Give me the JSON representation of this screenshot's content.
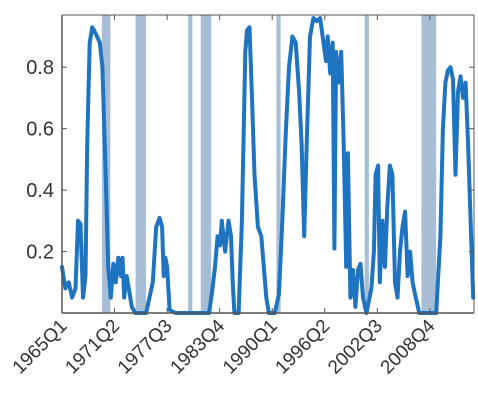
{
  "chart_data": {
    "type": "line",
    "title": "",
    "xlabel": "",
    "ylabel": "",
    "ylim": [
      0.0,
      0.97
    ],
    "xlim": [
      1965.0,
      2014.0
    ],
    "grid": false,
    "legend": "none",
    "colors": {
      "line": "#1f74c2",
      "shade": "#9fb6d2",
      "axis": "#555555",
      "text": "#333333"
    },
    "y_ticks": [
      {
        "value": 0.2,
        "label": "0.2"
      },
      {
        "value": 0.4,
        "label": "0.4"
      },
      {
        "value": 0.6,
        "label": "0.6"
      },
      {
        "value": 0.8,
        "label": "0.8"
      }
    ],
    "x_ticks": [
      {
        "value": 1965.0,
        "label": "1965Q1"
      },
      {
        "value": 1971.25,
        "label": "1971Q2"
      },
      {
        "value": 1977.5,
        "label": "1977Q3"
      },
      {
        "value": 1983.75,
        "label": "1983Q4"
      },
      {
        "value": 1990.0,
        "label": "1990Q1"
      },
      {
        "value": 1996.25,
        "label": "1996Q2"
      },
      {
        "value": 2002.5,
        "label": "2002Q3"
      },
      {
        "value": 2008.75,
        "label": "2008Q4"
      }
    ],
    "shaded_periods": [
      [
        1969.75,
        1970.75
      ],
      [
        1973.75,
        1975.0
      ],
      [
        1980.0,
        1980.5
      ],
      [
        1981.5,
        1982.75
      ],
      [
        1990.5,
        1991.0
      ],
      [
        2001.0,
        2001.5
      ],
      [
        2007.75,
        2009.5
      ]
    ],
    "series": [
      {
        "values": [
          [
            1965.0,
            0.15
          ],
          [
            1965.4,
            0.08
          ],
          [
            1965.8,
            0.1
          ],
          [
            1966.2,
            0.05
          ],
          [
            1966.6,
            0.08
          ],
          [
            1966.9,
            0.3
          ],
          [
            1967.2,
            0.29
          ],
          [
            1967.5,
            0.05
          ],
          [
            1967.8,
            0.12
          ],
          [
            1968.0,
            0.55
          ],
          [
            1968.3,
            0.88
          ],
          [
            1968.6,
            0.93
          ],
          [
            1969.0,
            0.91
          ],
          [
            1969.5,
            0.88
          ],
          [
            1969.8,
            0.8
          ],
          [
            1970.2,
            0.45
          ],
          [
            1970.5,
            0.15
          ],
          [
            1970.8,
            0.05
          ],
          [
            1971.1,
            0.16
          ],
          [
            1971.4,
            0.1
          ],
          [
            1971.7,
            0.18
          ],
          [
            1972.0,
            0.12
          ],
          [
            1972.2,
            0.18
          ],
          [
            1972.4,
            0.05
          ],
          [
            1972.7,
            0.12
          ],
          [
            1973.0,
            0.07
          ],
          [
            1973.3,
            0.02
          ],
          [
            1973.7,
            0.0
          ],
          [
            1975.0,
            0.0
          ],
          [
            1975.8,
            0.1
          ],
          [
            1976.2,
            0.28
          ],
          [
            1976.6,
            0.31
          ],
          [
            1976.9,
            0.28
          ],
          [
            1977.1,
            0.12
          ],
          [
            1977.3,
            0.18
          ],
          [
            1977.5,
            0.15
          ],
          [
            1977.8,
            0.01
          ],
          [
            1978.5,
            0.0
          ],
          [
            1982.5,
            0.0
          ],
          [
            1982.9,
            0.08
          ],
          [
            1983.2,
            0.15
          ],
          [
            1983.5,
            0.25
          ],
          [
            1983.8,
            0.22
          ],
          [
            1984.0,
            0.3
          ],
          [
            1984.4,
            0.2
          ],
          [
            1984.8,
            0.3
          ],
          [
            1985.1,
            0.25
          ],
          [
            1985.3,
            0.1
          ],
          [
            1985.5,
            0.0
          ],
          [
            1986.0,
            0.0
          ],
          [
            1986.4,
            0.3
          ],
          [
            1986.8,
            0.85
          ],
          [
            1987.0,
            0.92
          ],
          [
            1987.3,
            0.93
          ],
          [
            1987.6,
            0.7
          ],
          [
            1987.9,
            0.45
          ],
          [
            1988.3,
            0.28
          ],
          [
            1988.7,
            0.25
          ],
          [
            1989.0,
            0.15
          ],
          [
            1989.3,
            0.05
          ],
          [
            1989.6,
            0.0
          ],
          [
            1990.3,
            0.0
          ],
          [
            1990.8,
            0.06
          ],
          [
            1991.2,
            0.3
          ],
          [
            1991.6,
            0.58
          ],
          [
            1992.0,
            0.8
          ],
          [
            1992.4,
            0.9
          ],
          [
            1992.8,
            0.88
          ],
          [
            1993.2,
            0.72
          ],
          [
            1993.5,
            0.55
          ],
          [
            1993.8,
            0.25
          ],
          [
            1994.1,
            0.55
          ],
          [
            1994.5,
            0.9
          ],
          [
            1994.9,
            0.96
          ],
          [
            1995.3,
            0.95
          ],
          [
            1995.7,
            0.96
          ],
          [
            1996.1,
            0.88
          ],
          [
            1996.4,
            0.82
          ],
          [
            1996.6,
            0.9
          ],
          [
            1996.9,
            0.78
          ],
          [
            1997.2,
            0.88
          ],
          [
            1997.4,
            0.21
          ],
          [
            1997.6,
            0.85
          ],
          [
            1997.9,
            0.75
          ],
          [
            1998.2,
            0.85
          ],
          [
            1998.5,
            0.55
          ],
          [
            1998.8,
            0.15
          ],
          [
            1999.0,
            0.52
          ],
          [
            1999.3,
            0.05
          ],
          [
            1999.6,
            0.14
          ],
          [
            1999.9,
            0.02
          ],
          [
            2000.2,
            0.14
          ],
          [
            2000.5,
            0.16
          ],
          [
            2000.8,
            0.05
          ],
          [
            2001.2,
            0.0
          ],
          [
            2001.8,
            0.08
          ],
          [
            2002.1,
            0.2
          ],
          [
            2002.3,
            0.45
          ],
          [
            2002.6,
            0.48
          ],
          [
            2002.8,
            0.1
          ],
          [
            2003.1,
            0.3
          ],
          [
            2003.4,
            0.15
          ],
          [
            2003.7,
            0.35
          ],
          [
            2004.0,
            0.48
          ],
          [
            2004.3,
            0.45
          ],
          [
            2004.6,
            0.1
          ],
          [
            2004.9,
            0.05
          ],
          [
            2005.2,
            0.2
          ],
          [
            2005.5,
            0.28
          ],
          [
            2005.8,
            0.33
          ],
          [
            2006.1,
            0.12
          ],
          [
            2006.4,
            0.2
          ],
          [
            2006.7,
            0.1
          ],
          [
            2007.0,
            0.06
          ],
          [
            2007.5,
            0.0
          ],
          [
            2009.5,
            0.0
          ],
          [
            2010.0,
            0.25
          ],
          [
            2010.3,
            0.6
          ],
          [
            2010.6,
            0.75
          ],
          [
            2010.9,
            0.79
          ],
          [
            2011.2,
            0.8
          ],
          [
            2011.5,
            0.76
          ],
          [
            2011.8,
            0.45
          ],
          [
            2012.1,
            0.72
          ],
          [
            2012.4,
            0.77
          ],
          [
            2012.7,
            0.7
          ],
          [
            2013.0,
            0.75
          ],
          [
            2013.3,
            0.55
          ],
          [
            2013.6,
            0.3
          ],
          [
            2013.9,
            0.05
          ]
        ]
      }
    ]
  }
}
